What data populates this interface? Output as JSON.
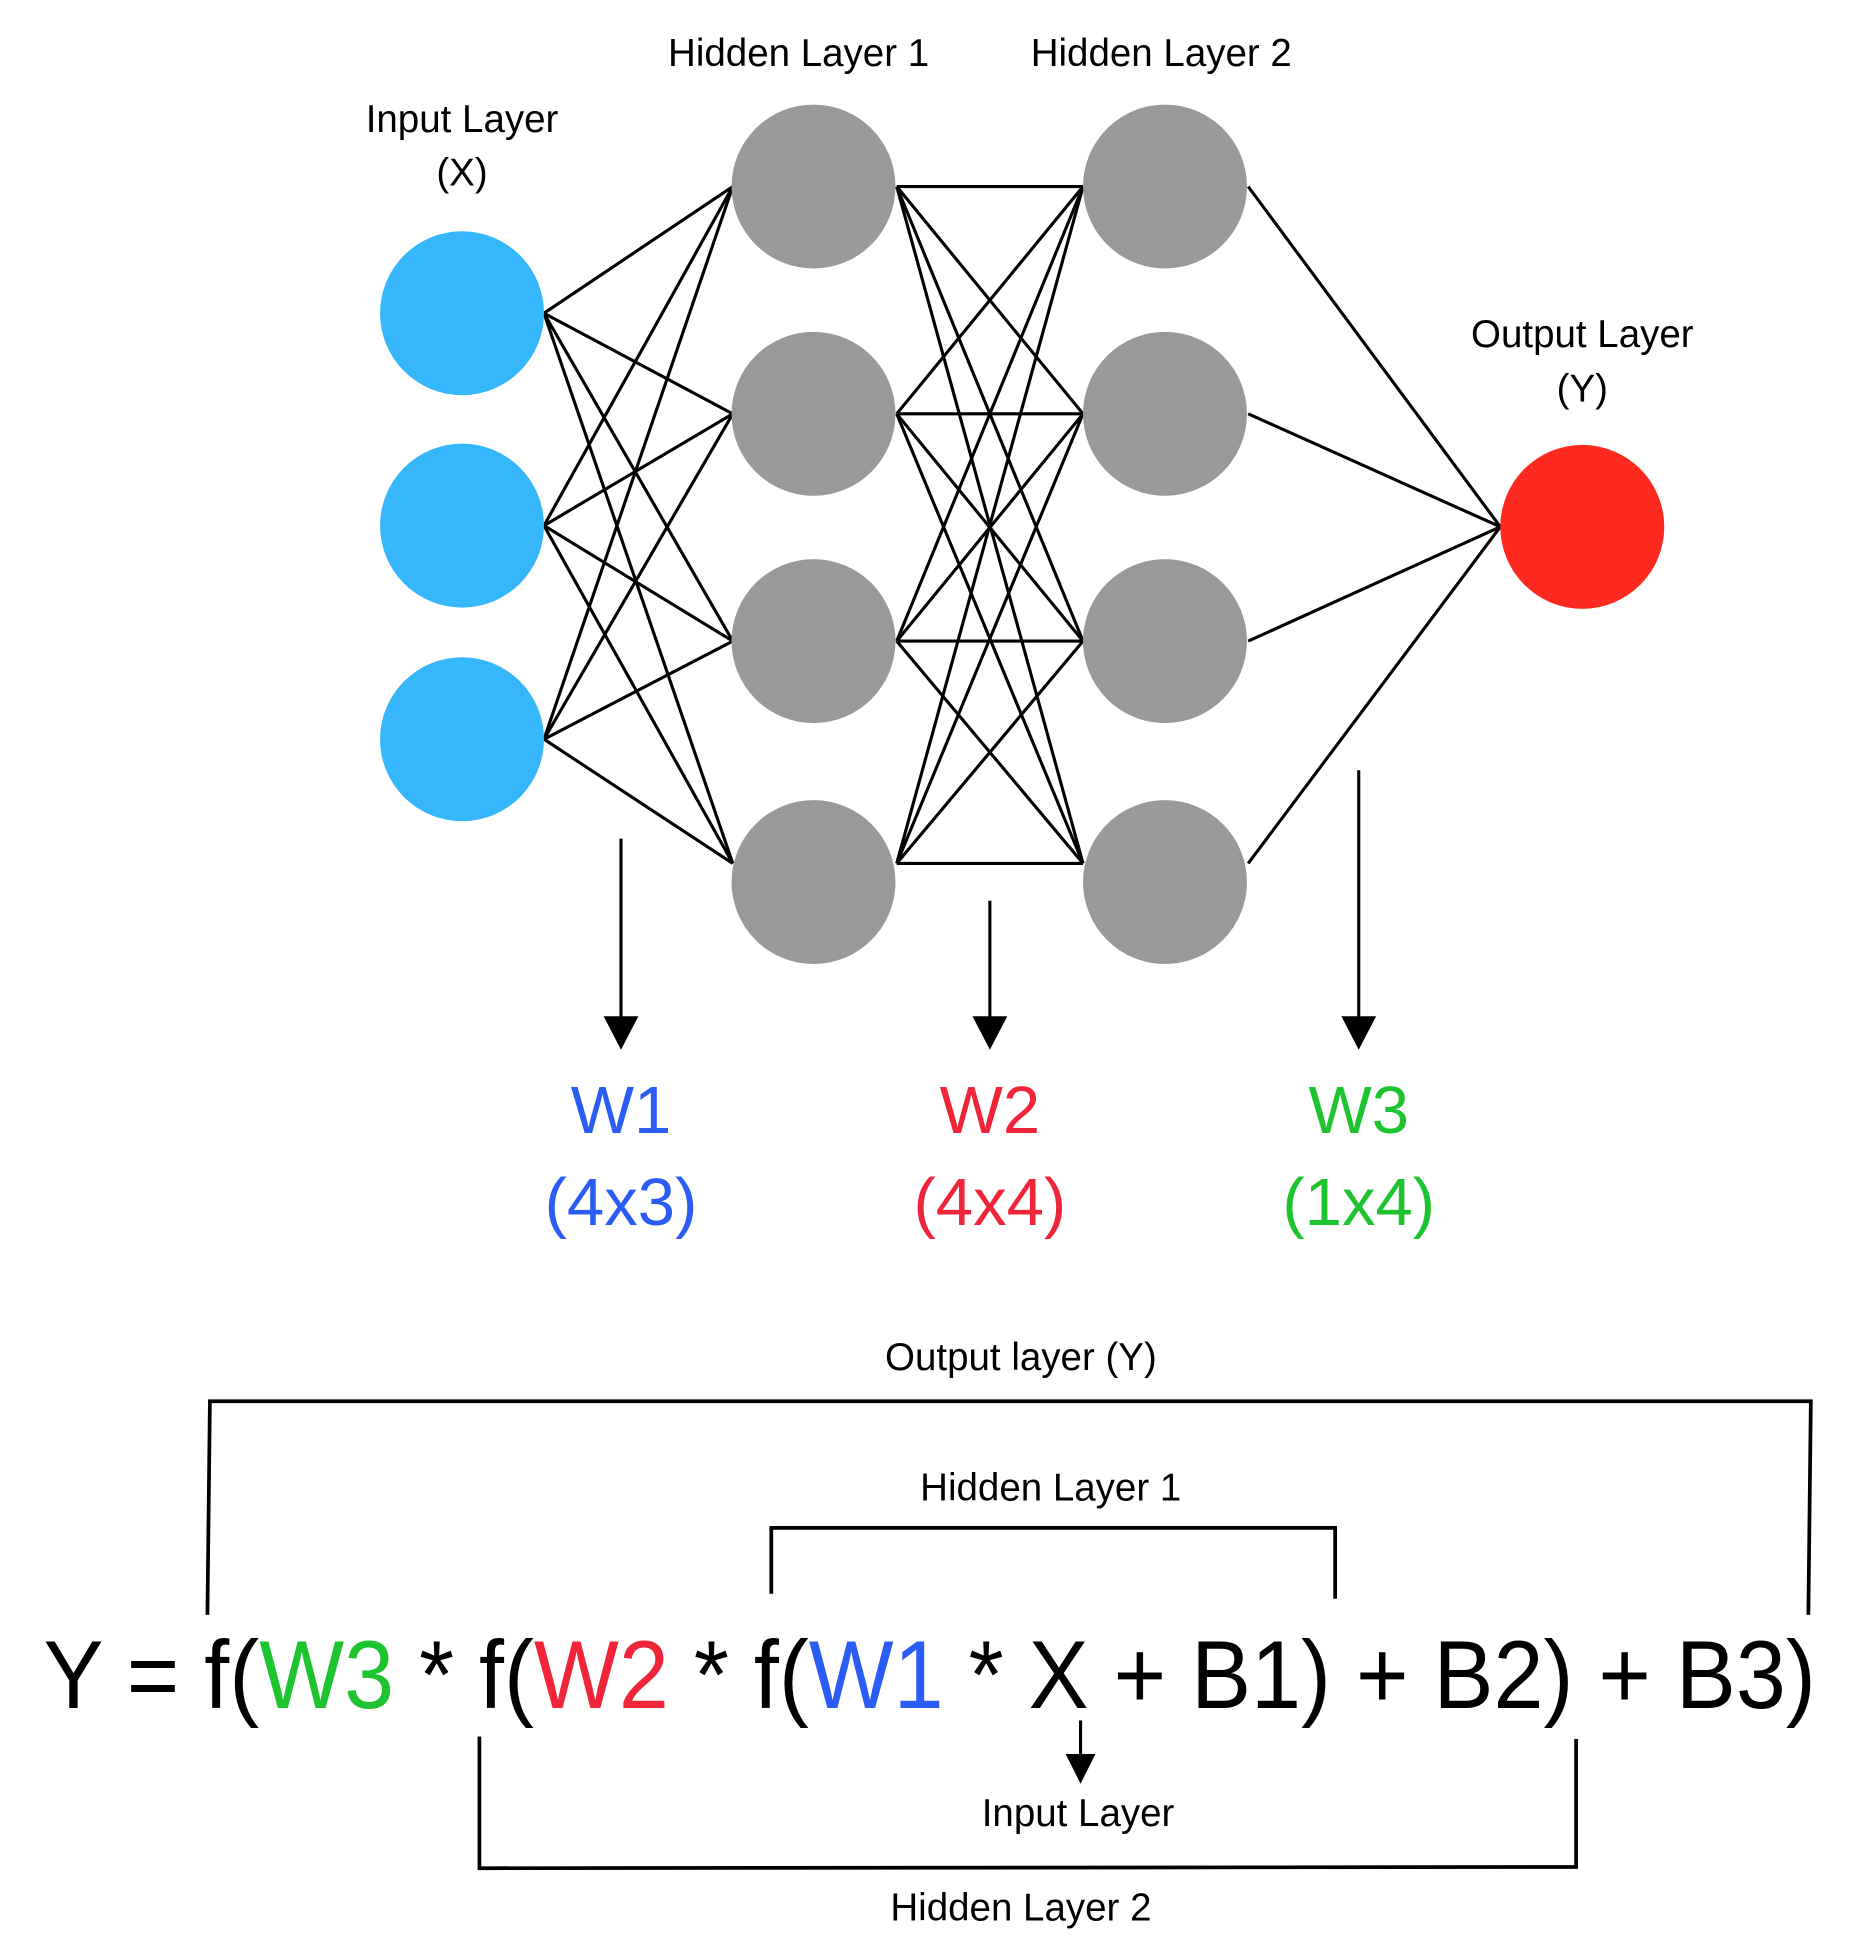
{
  "labels": {
    "input_layer": "Input Layer",
    "input_symbol": "(X)",
    "hidden_layer_1": "Hidden Layer 1",
    "hidden_layer_2": "Hidden Layer 2",
    "output_layer": "Output Layer",
    "output_symbol": "(Y)"
  },
  "layers": {
    "input_nodes": 3,
    "hidden1_nodes": 4,
    "hidden2_nodes": 4,
    "output_nodes": 1
  },
  "colors": {
    "input": "#36b7fb",
    "hidden": "#999999",
    "output": "#fe2a1f",
    "w1": "#2c5cf6",
    "w2": "#f0253a",
    "w3": "#1ec42f"
  },
  "weights": [
    {
      "name": "W1",
      "shape": "(4x3)"
    },
    {
      "name": "W2",
      "shape": "(4x4)"
    },
    {
      "name": "W3",
      "shape": "(1x4)"
    }
  ],
  "equation": {
    "p1": "Y = f(",
    "w3": "W3",
    "p2": " * f(",
    "w2": "W2",
    "p3": " * f(",
    "w1": "W1",
    "p4": " * X + B1) + B2) + B3)"
  },
  "brackets": {
    "output": "Output layer (Y)",
    "hidden1": "Hidden Layer 1",
    "input": "Input Layer",
    "hidden2": "Hidden Layer 2"
  }
}
